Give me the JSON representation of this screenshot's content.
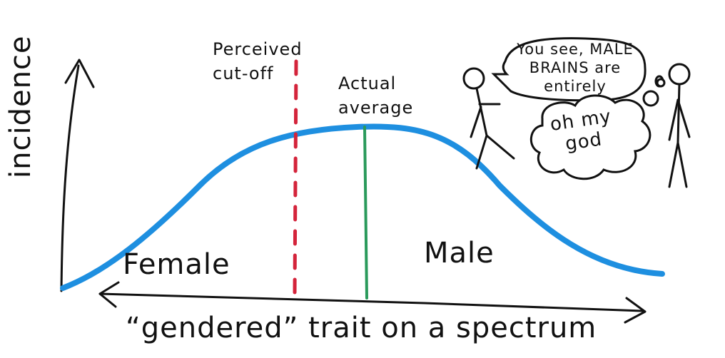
{
  "diagram": {
    "y_axis_label": "incidence",
    "x_axis_label": "“gendered” trait on a spectrum",
    "perceived_label_line1": "Perceived",
    "perceived_label_line2": "cut-off",
    "actual_label_line1": "Actual",
    "actual_label_line2": "average",
    "left_region_label": "Female",
    "right_region_label": "Male",
    "speech_bubble_line1": "You see, MALE",
    "speech_bubble_line2": "BRAINS are",
    "speech_bubble_line3": "entirely",
    "thought_bubble_line1": "oh my",
    "thought_bubble_line2": "god"
  },
  "colors": {
    "curve": "#1e8fe0",
    "perceived_line": "#d4243b",
    "actual_line": "#2a9a5b",
    "ink": "#111111"
  },
  "icons": [
    "stick-figure-speaker",
    "stick-figure-listener"
  ]
}
